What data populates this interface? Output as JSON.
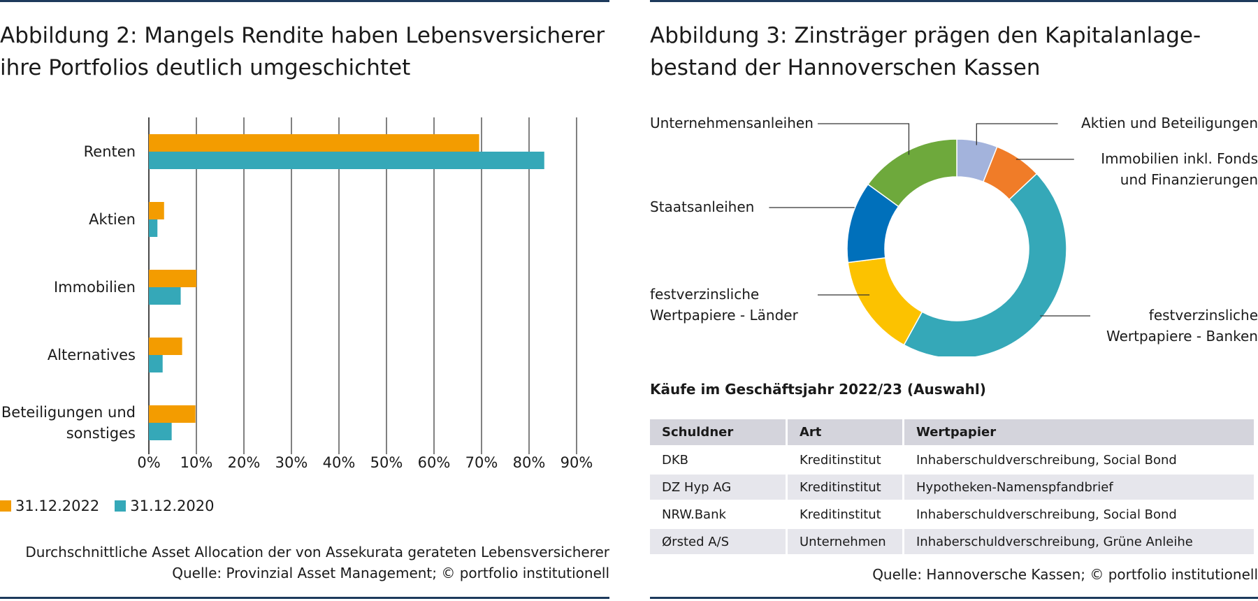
{
  "left": {
    "title_lines": [
      "Abbildung 2: Mangels Rendite haben Lebensversicherer",
      "ihre Portfolios deutlich umgeschichtet"
    ],
    "legend": [
      {
        "label": "31.12.2022",
        "color": "#f39c00"
      },
      {
        "label": "31.12.2020",
        "color": "#35a8b8"
      }
    ],
    "note_line1": "Durchschnittliche Asset Allocation der von Assekurata gerateten Lebensversicherer",
    "note_line2": "Quelle: Provinzial Asset Management; © portfolio institutionell"
  },
  "right": {
    "title_lines": [
      "Abbildung 3: Zinsträger prägen den Kapitalanlage-",
      "bestand der Hannoverschen Kassen"
    ],
    "table_title": "Käufe im Geschäftsjahr 2022/23 (Auswahl)",
    "table": {
      "headers": [
        "Schuldner",
        "Art",
        "Wertpapier"
      ],
      "rows": [
        [
          "DKB",
          "Kreditinstitut",
          "Inhaberschuldverschreibung, Social Bond"
        ],
        [
          "DZ Hyp AG",
          "Kreditinstitut",
          "Hypotheken-Namenspfandbrief"
        ],
        [
          "NRW.Bank",
          "Kreditinstitut",
          "Inhaberschuldverschreibung, Social Bond"
        ],
        [
          "Ørsted A/S",
          "Unternehmen",
          "Inhaberschuldverschreibung, Grüne Anleihe"
        ]
      ]
    },
    "source": "Quelle: Hannoversche Kassen; © portfolio institutionell"
  },
  "chart_data": [
    {
      "type": "bar",
      "orientation": "horizontal",
      "categories": [
        "Renten",
        "Aktien",
        "Immobilien",
        "Alternatives",
        "Beteiligungen und sonstiges"
      ],
      "category_lines": [
        [
          "Renten"
        ],
        [
          "Aktien"
        ],
        [
          "Immobilien"
        ],
        [
          "Alternatives"
        ],
        [
          "Beteiligungen und",
          "sonstiges"
        ]
      ],
      "series": [
        {
          "name": "31.12.2022",
          "color": "#f39c00",
          "values": [
            69.5,
            3.2,
            10.0,
            7.0,
            9.8
          ]
        },
        {
          "name": "31.12.2020",
          "color": "#35a8b8",
          "values": [
            83.2,
            1.8,
            6.7,
            2.9,
            4.8
          ]
        }
      ],
      "xlim": [
        0,
        90
      ],
      "xticks": [
        "0%",
        "10%",
        "20%",
        "30%",
        "40%",
        "50%",
        "60%",
        "70%",
        "80%",
        "90%"
      ],
      "grid": true,
      "legend_position": "bottom-left"
    },
    {
      "type": "pie",
      "variant": "donut",
      "slices": [
        {
          "label": "Aktien und Beteiligungen",
          "label_lines": [
            "Aktien und Beteiligungen"
          ],
          "value": 6,
          "color": "#a3b3dc"
        },
        {
          "label": "Immobilien inkl. Fonds und Finanzierungen",
          "label_lines": [
            "Immobilien inkl. Fonds",
            "und Finanzierungen"
          ],
          "value": 7,
          "color": "#f07c28"
        },
        {
          "label": "festverzinsliche Wertpapiere - Banken",
          "label_lines": [
            "festverzinsliche",
            "Wertpapiere - Banken"
          ],
          "value": 45,
          "color": "#35a8b8"
        },
        {
          "label": "festverzinsliche Wertpapiere - Länder",
          "label_lines": [
            "festverzinsliche",
            "Wertpapiere - Länder"
          ],
          "value": 15,
          "color": "#fcc200"
        },
        {
          "label": "Staatsanleihen",
          "label_lines": [
            "Staatsanleihen"
          ],
          "value": 12,
          "color": "#0070bb"
        },
        {
          "label": "Unternehmensanleihen",
          "label_lines": [
            "Unternehmensanleihen"
          ],
          "value": 15,
          "color": "#6ea93c"
        }
      ]
    }
  ]
}
